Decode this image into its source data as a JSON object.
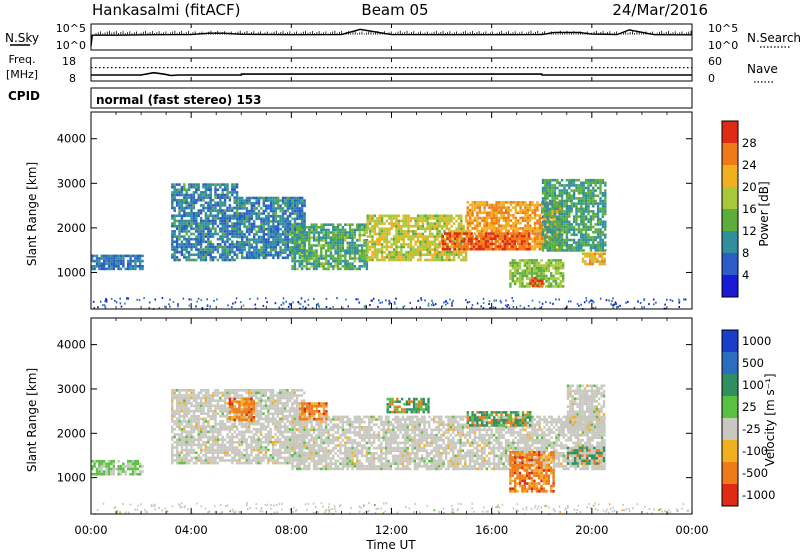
{
  "header": {
    "station": "Hankasalmi (fitACF)",
    "beam": "Beam 05",
    "date": "24/Mar/2016"
  },
  "chart_data": [
    {
      "type": "line",
      "panel": "sky-search",
      "left_label": "N.Sky",
      "right_label": "N.Search",
      "left_ticks": [
        "10^5",
        "10^0"
      ],
      "right_ticks": [
        "10^5",
        "10^0"
      ],
      "left_scale": "log",
      "series": [
        {
          "key": "nsky",
          "style": "solid",
          "x": [
            0.0,
            0.05,
            1.0,
            2.5,
            4.0,
            4.7,
            5.3,
            6.0,
            8.0,
            10.0,
            10.75,
            12.0,
            14.0,
            16.0,
            18.0,
            18.5,
            19.5,
            20.0,
            21.0,
            21.5,
            22.5,
            24.0
          ],
          "y": [
            1,
            1000,
            1000,
            1400,
            1500,
            3500,
            3500,
            1800,
            1400,
            1500,
            40000,
            1500,
            1400,
            1400,
            1500,
            6000,
            6000,
            2000,
            1500,
            30000,
            1400,
            1300
          ]
        }
      ]
    },
    {
      "type": "line",
      "panel": "freq-nave",
      "left_label": "Freq. [MHz]",
      "right_label": "Nave",
      "left_ticks": [
        18,
        8
      ],
      "right_ticks": [
        60,
        0
      ],
      "ylim_left": [
        8,
        18
      ],
      "ylim_right": [
        0,
        60
      ],
      "series": [
        {
          "key": "freq",
          "style": "solid",
          "x": [
            0,
            2.0,
            2.5,
            2.9,
            3.2,
            3.5,
            6.0,
            6.01,
            18.0,
            18.01,
            24
          ],
          "y": [
            10.6,
            10.6,
            11.6,
            11.0,
            10.4,
            10.6,
            10.6,
            11.0,
            11.0,
            10.6,
            10.6
          ]
        },
        {
          "key": "nave",
          "style": "dotted",
          "x": [
            0,
            24
          ],
          "y": [
            35,
            35
          ]
        }
      ]
    },
    {
      "type": "heatmap",
      "panel": "cpid",
      "left_label": "CPID",
      "text": "normal (fast stereo) 153"
    },
    {
      "type": "heatmap",
      "panel": "power",
      "ylabel": "Slant Range [km]",
      "y_ticks": [
        1000,
        2000,
        3000,
        4000
      ],
      "ylim": [
        180,
        4600
      ],
      "xlim": [
        0,
        24
      ],
      "colorbar_label": "Power [dB]",
      "colorbar_ticks": [
        4,
        8,
        12,
        16,
        20,
        24,
        28
      ],
      "colorbar_range": [
        0,
        32
      ],
      "colors": [
        "#1a1ad6",
        "#2c5cc8",
        "#2f8f9a",
        "#5cae3c",
        "#a8c83a",
        "#f0b020",
        "#f07a18",
        "#e02a14"
      ],
      "regions": [
        {
          "x": [
            0.0,
            2.1
          ],
          "r": [
            1050,
            1400
          ],
          "level": 8
        },
        {
          "x": [
            3.2,
            5.8
          ],
          "r": [
            1300,
            3000
          ],
          "level": 9
        },
        {
          "x": [
            5.8,
            8.5
          ],
          "r": [
            1300,
            2700
          ],
          "level": 9
        },
        {
          "x": [
            8.0,
            11.0
          ],
          "r": [
            1100,
            2100
          ],
          "level": 13
        },
        {
          "x": [
            11.0,
            15.0
          ],
          "r": [
            1300,
            2300
          ],
          "level": 19
        },
        {
          "x": [
            15.0,
            18.8
          ],
          "r": [
            1500,
            2600
          ],
          "level": 24
        },
        {
          "x": [
            14.0,
            17.5
          ],
          "r": [
            1500,
            1900
          ],
          "level": 28
        },
        {
          "x": [
            18.0,
            20.5
          ],
          "r": [
            1500,
            3100
          ],
          "level": 12
        },
        {
          "x": [
            16.7,
            18.9
          ],
          "r": [
            700,
            1300
          ],
          "level": 16
        },
        {
          "x": [
            17.5,
            18.0
          ],
          "r": [
            700,
            900
          ],
          "level": 28
        },
        {
          "x": [
            19.6,
            20.5
          ],
          "r": [
            1200,
            1450
          ],
          "level": 22
        }
      ]
    },
    {
      "type": "heatmap",
      "panel": "velocity",
      "ylabel": "Slant Range [km]",
      "xlabel": "Time UT",
      "x_ticks": [
        "00:00",
        "04:00",
        "08:00",
        "12:00",
        "16:00",
        "20:00",
        "00:00"
      ],
      "y_ticks": [
        1000,
        2000,
        3000,
        4000
      ],
      "ylim": [
        180,
        4600
      ],
      "xlim": [
        0,
        24
      ],
      "colorbar_label": "Velocity [m s⁻¹]",
      "colorbar_ticks": [
        1000,
        500,
        100,
        25,
        -25,
        -100,
        -500,
        -1000
      ],
      "colors": [
        "#1a3ec8",
        "#2a6ec0",
        "#2f8f60",
        "#59c040",
        "#c8c8c0",
        "#f0b020",
        "#f07a18",
        "#e02a14"
      ],
      "regions": [
        {
          "x": [
            0.0,
            2.1
          ],
          "r": [
            1050,
            1400
          ],
          "level": 25
        },
        {
          "x": [
            3.2,
            8.5
          ],
          "r": [
            1300,
            3000
          ],
          "level": 0
        },
        {
          "x": [
            8.0,
            20.5
          ],
          "r": [
            1200,
            2400
          ],
          "level": 0
        },
        {
          "x": [
            19.0,
            20.5
          ],
          "r": [
            2100,
            3100
          ],
          "level": 0
        },
        {
          "x": [
            5.5,
            6.5
          ],
          "r": [
            2300,
            2800
          ],
          "level": -500
        },
        {
          "x": [
            8.3,
            9.4
          ],
          "r": [
            2300,
            2700
          ],
          "level": -500
        },
        {
          "x": [
            11.8,
            13.5
          ],
          "r": [
            2500,
            2800
          ],
          "level": 100
        },
        {
          "x": [
            15.0,
            17.5
          ],
          "r": [
            2200,
            2500
          ],
          "level": 100
        },
        {
          "x": [
            16.7,
            18.5
          ],
          "r": [
            700,
            1600
          ],
          "level": -500
        },
        {
          "x": [
            19.0,
            20.5
          ],
          "r": [
            1300,
            1700
          ],
          "level": 250
        }
      ]
    }
  ]
}
